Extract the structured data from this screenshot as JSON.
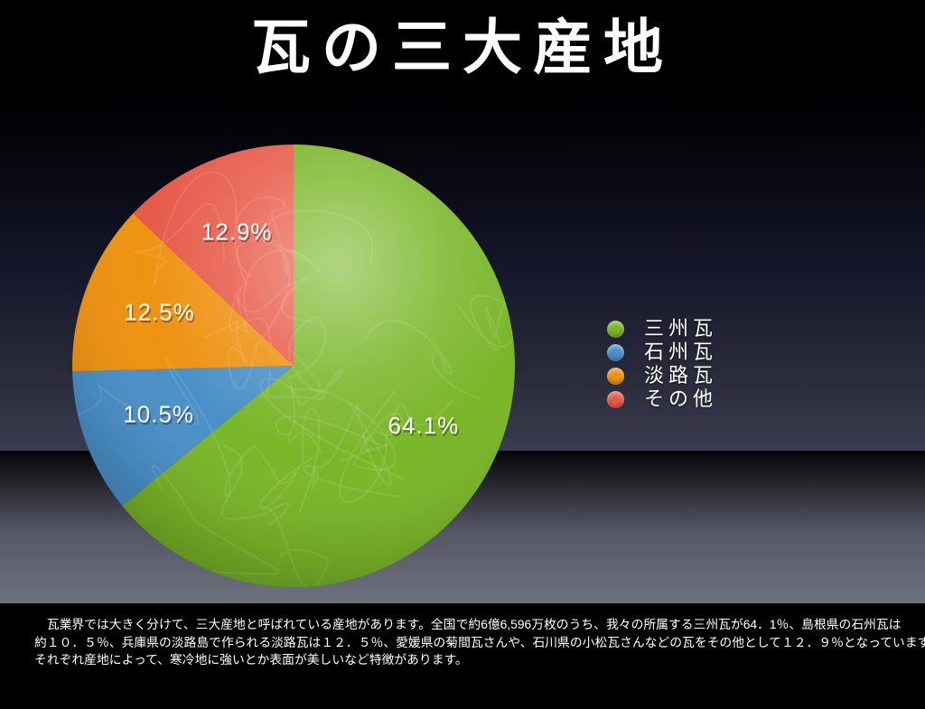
{
  "title": "瓦の三大産地",
  "chart_data": {
    "type": "pie",
    "title": "瓦の三大産地",
    "start_angle_deg": 0,
    "direction": "clockwise",
    "legend_position": "right",
    "slices": [
      {
        "label": "三州瓦",
        "value": 64.1,
        "display": "64.1%",
        "color": "#79b628"
      },
      {
        "label": "石州瓦",
        "value": 10.5,
        "display": "10.5%",
        "color": "#4a90c8"
      },
      {
        "label": "淡路瓦",
        "value": 12.5,
        "display": "12.5%",
        "color": "#ee9211"
      },
      {
        "label": "その他",
        "value": 12.9,
        "display": "12.9%",
        "color": "#e75a49"
      }
    ]
  },
  "footer": {
    "lines": [
      "　瓦業界では大きく分けて、三大産地と呼ばれている産地があります。全国で約6億6,596万枚のうち、我々の所属する三州瓦が64．1％、島根県の石州瓦は",
      "約１０．５％、兵庫県の淡路島で作られる淡路瓦は１２．５％、愛媛県の菊間瓦さんや、石川県の小松瓦さんなどの瓦をその他として１２．９％となっています。",
      "それぞれ産地によって、寒冷地に強いとか表面が美しいなど特徴があります。"
    ]
  },
  "style": {
    "background_top": "#000000",
    "background_bottom": "#6e707d",
    "text_color": "#ffffff"
  }
}
